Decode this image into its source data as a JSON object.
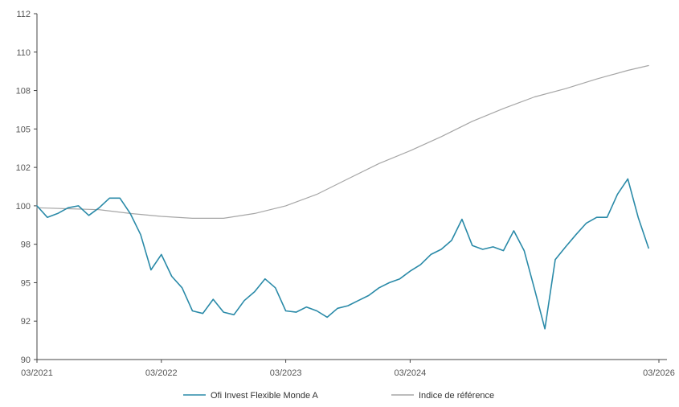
{
  "chart_data": {
    "type": "line",
    "title": "",
    "xlabel": "",
    "ylabel": "",
    "x_ticks": [
      "03/2021",
      "03/2022",
      "03/2023",
      "03/2024",
      "03/2026"
    ],
    "x_range": [
      "2021-03",
      "2026-03"
    ],
    "y_ticks": [
      "90",
      "92",
      "95",
      "98",
      "100",
      "102",
      "105",
      "108",
      "110",
      "112"
    ],
    "ylim": [
      90,
      112
    ],
    "grid": false,
    "legend_position": "bottom",
    "series": [
      {
        "name": "Ofi Invest Flexible Monde A",
        "color": "#2a8aa8",
        "points": [
          [
            "2021-03",
            100.0
          ],
          [
            "2021-04",
            99.4
          ],
          [
            "2021-05",
            99.6
          ],
          [
            "2021-06",
            99.9
          ],
          [
            "2021-07",
            100.0
          ],
          [
            "2021-08",
            99.5
          ],
          [
            "2021-09",
            99.9
          ],
          [
            "2021-10",
            100.4
          ],
          [
            "2021-11",
            100.4
          ],
          [
            "2021-12",
            99.6
          ],
          [
            "2022-01",
            98.5
          ],
          [
            "2022-02",
            96.0
          ],
          [
            "2022-03",
            97.2
          ],
          [
            "2022-04",
            95.5
          ],
          [
            "2022-05",
            94.6
          ],
          [
            "2022-06",
            92.8
          ],
          [
            "2022-07",
            92.6
          ],
          [
            "2022-08",
            93.7
          ],
          [
            "2022-09",
            92.7
          ],
          [
            "2022-10",
            92.5
          ],
          [
            "2022-11",
            93.6
          ],
          [
            "2022-12",
            94.3
          ],
          [
            "2023-01",
            95.3
          ],
          [
            "2023-02",
            94.6
          ],
          [
            "2023-03",
            92.8
          ],
          [
            "2023-04",
            92.7
          ],
          [
            "2023-05",
            93.1
          ],
          [
            "2023-06",
            92.8
          ],
          [
            "2023-07",
            92.3
          ],
          [
            "2023-08",
            93.0
          ],
          [
            "2023-09",
            93.2
          ],
          [
            "2023-10",
            93.6
          ],
          [
            "2023-11",
            94.0
          ],
          [
            "2023-12",
            94.6
          ],
          [
            "2024-01",
            95.0
          ],
          [
            "2024-02",
            95.3
          ],
          [
            "2024-03",
            95.9
          ],
          [
            "2024-04",
            96.4
          ],
          [
            "2024-05",
            97.2
          ],
          [
            "2024-06",
            97.6
          ],
          [
            "2024-07",
            98.2
          ],
          [
            "2024-08",
            99.3
          ],
          [
            "2024-09",
            97.9
          ],
          [
            "2024-10",
            97.6
          ],
          [
            "2024-11",
            97.8
          ],
          [
            "2024-12",
            97.5
          ],
          [
            "2025-01",
            98.7
          ],
          [
            "2025-02",
            97.5
          ],
          [
            "2025-03",
            94.5
          ],
          [
            "2025-04",
            91.6
          ],
          [
            "2025-05",
            96.8
          ],
          [
            "2025-06",
            97.8
          ],
          [
            "2025-07",
            98.5
          ],
          [
            "2025-08",
            99.1
          ],
          [
            "2025-09",
            99.4
          ],
          [
            "2025-10",
            99.4
          ],
          [
            "2025-11",
            100.6
          ],
          [
            "2025-12",
            101.4
          ],
          [
            "2026-01",
            99.4
          ],
          [
            "2026-02",
            97.7
          ]
        ]
      },
      {
        "name": "Indice de référence",
        "color": "#a6a6a6",
        "points": [
          [
            "2021-03",
            99.9
          ],
          [
            "2021-06",
            99.85
          ],
          [
            "2021-09",
            99.8
          ],
          [
            "2021-12",
            99.6
          ],
          [
            "2022-03",
            99.45
          ],
          [
            "2022-06",
            99.35
          ],
          [
            "2022-09",
            99.35
          ],
          [
            "2022-12",
            99.6
          ],
          [
            "2023-03",
            100.0
          ],
          [
            "2023-06",
            100.6
          ],
          [
            "2023-09",
            101.4
          ],
          [
            "2023-12",
            102.3
          ],
          [
            "2024-03",
            103.3
          ],
          [
            "2024-06",
            104.4
          ],
          [
            "2024-09",
            105.6
          ],
          [
            "2024-12",
            106.6
          ],
          [
            "2025-03",
            107.5
          ],
          [
            "2025-06",
            108.1
          ],
          [
            "2025-09",
            108.6
          ],
          [
            "2025-12",
            109.05
          ],
          [
            "2026-02",
            109.3
          ]
        ]
      }
    ]
  }
}
